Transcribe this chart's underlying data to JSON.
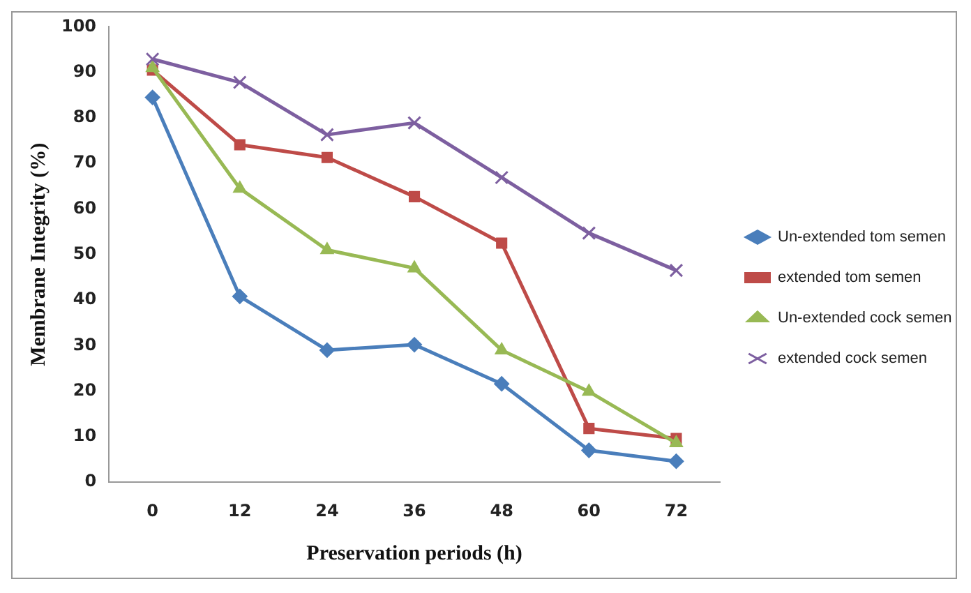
{
  "chart_data": {
    "type": "line",
    "xlabel": "Preservation periods (h)",
    "ylabel": "Membrane Integrity (%)",
    "categories": [
      "0",
      "12",
      "24",
      "36",
      "48",
      "60",
      "72"
    ],
    "ylim": [
      0,
      100
    ],
    "yticks": [
      0,
      10,
      20,
      30,
      40,
      50,
      60,
      70,
      80,
      90,
      100
    ],
    "grid": false,
    "legend": "right",
    "series": [
      {
        "name": "Un-extended tom semen",
        "color": "#4a7ebb",
        "marker": "diamond",
        "values": [
          84.5,
          40.8,
          29,
          30.2,
          21.6,
          7,
          4.6
        ]
      },
      {
        "name": "extended tom semen",
        "color": "#be4b48",
        "marker": "square",
        "values": [
          90.5,
          74.1,
          71.3,
          62.7,
          52.5,
          11.8,
          9.6
        ]
      },
      {
        "name": "Un-extended cock semen",
        "color": "#98b954",
        "marker": "triangle",
        "values": [
          91,
          64.5,
          51,
          47,
          29,
          19.9,
          8.6
        ]
      },
      {
        "name": "extended cock semen",
        "color": "#7d5fa0",
        "marker": "cross",
        "values": [
          92.9,
          87.8,
          76.3,
          78.9,
          66.9,
          54.7,
          46.5
        ]
      }
    ]
  }
}
